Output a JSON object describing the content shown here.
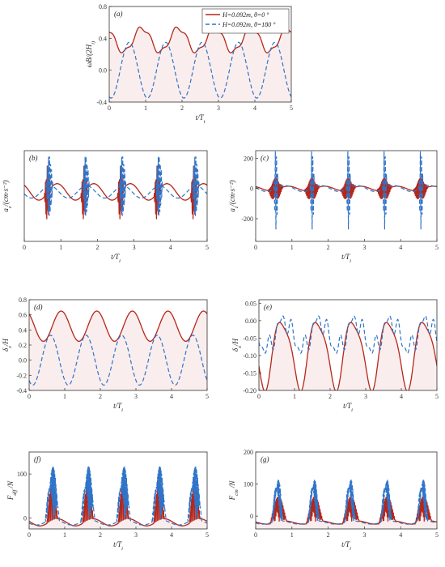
{
  "colors": {
    "series_solid": "#b5271b",
    "series_dashed": "#2f74c8",
    "fill_solid": "#f6dede",
    "frame": "#333333"
  },
  "chart_data": [
    {
      "id": "a",
      "type": "line",
      "panel_label": "(a)",
      "xlabel": "t/T_i",
      "ylabel": "ωB/(2H_i)",
      "xlim": [
        0,
        5
      ],
      "ylim": [
        -0.4,
        0.8
      ],
      "xticks": [
        0,
        1,
        2,
        3,
        4,
        5
      ],
      "yticks": [
        -0.4,
        0.0,
        0.4,
        0.8
      ],
      "ytick_labels": [
        "-0.4",
        "0.0",
        "0.4",
        "0.8"
      ],
      "legend": {
        "placement": "top-right",
        "entries": [
          {
            "series": 0,
            "text": "H=0.092m, θ=0 °"
          },
          {
            "series": 1,
            "text": "H=0.092m, θ=180 °"
          }
        ]
      },
      "series": [
        {
          "name": "H=0.092m, θ=0 °",
          "style": "solid",
          "filled": true,
          "period": 1,
          "mean": 0.38,
          "amplitude": 0.15,
          "phase": 0.1,
          "harmonics": [
            [
              3,
              0.03,
              0.6
            ]
          ]
        },
        {
          "name": "H=0.092m, θ=180 °",
          "style": "dashed",
          "period": 1,
          "mean": 0.0,
          "amplitude": 0.35,
          "phase": 0.45,
          "harmonics": []
        }
      ]
    },
    {
      "id": "b",
      "type": "line",
      "panel_label": "(b)",
      "xlabel": "t/T_i",
      "ylabel": "a_z/(cm·s⁻²)",
      "xlim": [
        0,
        5
      ],
      "ylim": [
        -120,
        100
      ],
      "xticks": [
        0,
        1,
        2,
        3,
        4,
        5
      ],
      "yticks": [],
      "series": [
        {
          "style": "solid",
          "period": 1,
          "mean": 0,
          "amplitude": 20,
          "phase": 0.1,
          "bursts": [
            0.55,
            0.72
          ],
          "burst_amp": 70,
          "burst_freq": 14
        },
        {
          "style": "dashed",
          "period": 1,
          "mean": 0,
          "amplitude": 15,
          "phase": 0.3,
          "bursts": [
            0.6,
            0.78
          ],
          "burst_amp": 85,
          "burst_freq": 12
        }
      ]
    },
    {
      "id": "c",
      "type": "line",
      "panel_label": "(c)",
      "xlabel": "t/T_i",
      "ylabel": "a_z/(cm·s⁻²)",
      "xlim": [
        0,
        5
      ],
      "ylim": [
        -350,
        250
      ],
      "xticks": [
        0,
        1,
        2,
        3,
        4,
        5
      ],
      "yticks": [
        -200,
        0,
        200
      ],
      "ytick_labels": [
        "-200",
        "0",
        "200"
      ],
      "series": [
        {
          "style": "solid",
          "period": 1,
          "mean": 0,
          "amplitude": 15,
          "phase": 0.1,
          "bursts": [
            0.35,
            0.75
          ],
          "burst_amp": 80,
          "burst_freq": 16
        },
        {
          "style": "dashed",
          "period": 1,
          "mean": 0,
          "amplitude": 20,
          "phase": 0.2,
          "bursts": [
            0.5,
            0.62
          ],
          "burst_amp": 280,
          "burst_freq": 10
        }
      ]
    },
    {
      "id": "d",
      "type": "line",
      "panel_label": "(d)",
      "xlabel": "t/T_i",
      "ylabel": "δ_z/H_i",
      "xlim": [
        0,
        5
      ],
      "ylim": [
        -0.4,
        0.8
      ],
      "xticks": [
        0,
        1,
        2,
        3,
        4,
        5
      ],
      "yticks": [
        -0.4,
        -0.2,
        0.0,
        0.2,
        0.4,
        0.6,
        0.8
      ],
      "ytick_labels": [
        "-0.4",
        "-0.2",
        "0.0",
        "0.2",
        "0.4",
        "0.6",
        "0.8"
      ],
      "series": [
        {
          "style": "solid",
          "filled": true,
          "period": 1,
          "mean": 0.45,
          "amplitude": 0.2,
          "phase": 0.1,
          "harmonics": []
        },
        {
          "style": "dashed",
          "period": 1,
          "mean": 0.0,
          "amplitude": 0.33,
          "phase": 0.4,
          "harmonics": []
        }
      ]
    },
    {
      "id": "e",
      "type": "line",
      "panel_label": "(e)",
      "xlabel": "t/T_i",
      "ylabel": "δ_x/H_i",
      "xlim": [
        0,
        5
      ],
      "ylim": [
        -0.2,
        0.06
      ],
      "xticks": [
        0,
        1,
        2,
        3,
        4,
        5
      ],
      "yticks": [
        -0.2,
        -0.15,
        -0.1,
        -0.05,
        0.0,
        0.05
      ],
      "ytick_labels": [
        "-0.20",
        "-0.15",
        "-0.10",
        "-0.05",
        "0.00",
        "0.05"
      ],
      "series": [
        {
          "style": "solid",
          "filled": true,
          "period": 1,
          "mean": -0.09,
          "amplitude": 0.095,
          "phase": 0.35,
          "harmonics": [
            [
              2,
              0.02,
              0.1
            ]
          ]
        },
        {
          "style": "dashed",
          "period": 1,
          "mean": -0.04,
          "amplitude": 0.04,
          "phase": 0.3,
          "harmonics": [
            [
              3,
              0.02,
              0.2
            ],
            [
              5,
              0.015,
              0.5
            ]
          ]
        }
      ]
    },
    {
      "id": "f",
      "type": "line",
      "panel_label": "(f)",
      "xlabel": "t/T_i",
      "ylabel": "F_dff /N",
      "xlim": [
        0,
        5
      ],
      "ylim": [
        -25,
        150
      ],
      "xticks": [
        0,
        1,
        2,
        3,
        4,
        5
      ],
      "yticks": [
        0,
        100
      ],
      "ytick_labels": [
        "0",
        "100"
      ],
      "series": [
        {
          "style": "solid",
          "filled": true,
          "period": 1,
          "mean": -10,
          "amplitude": 8,
          "phase": 0.2,
          "bursts": [
            0.5,
            0.8
          ],
          "burst_amp": 90,
          "burst_freq": 14,
          "positive_only": true
        },
        {
          "style": "dashed",
          "period": 1,
          "mean": -10,
          "amplitude": 6,
          "phase": 0.3,
          "bursts": [
            0.45,
            0.85
          ],
          "burst_amp": 125,
          "burst_freq": 12,
          "positive_only": true
        }
      ]
    },
    {
      "id": "g",
      "type": "line",
      "panel_label": "(g)",
      "xlabel": "t/T_i",
      "ylabel": "F_cm /N",
      "xlim": [
        0,
        5
      ],
      "ylim": [
        -40,
        200
      ],
      "xticks": [
        0,
        1,
        2,
        3,
        4,
        5
      ],
      "yticks": [
        0,
        100,
        200
      ],
      "ytick_labels": [
        "0",
        "100",
        "200"
      ],
      "series": [
        {
          "style": "solid",
          "filled": true,
          "period": 1,
          "mean": -20,
          "amplitude": 5,
          "phase": 0.2,
          "bursts": [
            0.4,
            0.85
          ],
          "burst_amp": 80,
          "burst_freq": 16,
          "positive_only": true
        },
        {
          "style": "dashed",
          "period": 1,
          "mean": -20,
          "amplitude": 5,
          "phase": 0.3,
          "bursts": [
            0.45,
            0.75
          ],
          "burst_amp": 150,
          "burst_freq": 12,
          "positive_only": true
        }
      ]
    }
  ]
}
